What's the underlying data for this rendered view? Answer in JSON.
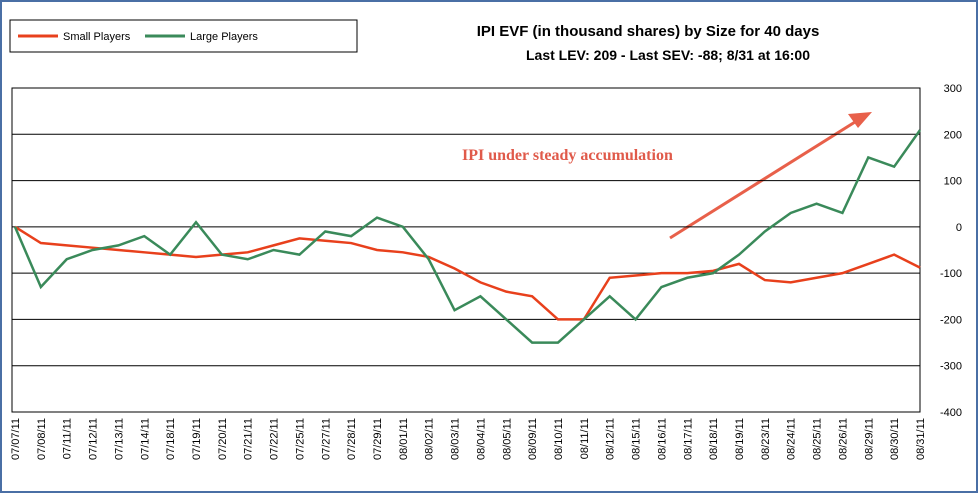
{
  "chart_data": {
    "type": "line",
    "title": "IPI EVF (in thousand shares) by Size for 40 days",
    "subtitle": "Last LEV: 209 - Last SEV: -88; 8/31 at 16:00",
    "annotation": "IPI under steady accumulation",
    "categories": [
      "07/07/11",
      "07/08/11",
      "07/11/11",
      "07/12/11",
      "07/13/11",
      "07/14/11",
      "07/18/11",
      "07/19/11",
      "07/20/11",
      "07/21/11",
      "07/22/11",
      "07/25/11",
      "07/27/11",
      "07/28/11",
      "07/29/11",
      "08/01/11",
      "08/02/11",
      "08/03/11",
      "08/04/11",
      "08/05/11",
      "08/09/11",
      "08/10/11",
      "08/11/11",
      "08/12/11",
      "08/15/11",
      "08/16/11",
      "08/17/11",
      "08/18/11",
      "08/19/11",
      "08/23/11",
      "08/24/11",
      "08/25/11",
      "08/26/11",
      "08/29/11",
      "08/30/11",
      "08/31/11"
    ],
    "series": [
      {
        "name": "Small Players",
        "color": "#e8401c",
        "values": [
          0,
          -35,
          -40,
          -45,
          -50,
          -55,
          -60,
          -65,
          -60,
          -55,
          -40,
          -25,
          -30,
          -35,
          -50,
          -55,
          -65,
          -90,
          -120,
          -140,
          -150,
          -200,
          -200,
          -110,
          -105,
          -100,
          -100,
          -95,
          -80,
          -115,
          -120,
          -110,
          -100,
          -80,
          -60,
          -88
        ]
      },
      {
        "name": "Large Players",
        "color": "#3a8a5a",
        "values": [
          0,
          -130,
          -70,
          -50,
          -40,
          -20,
          -60,
          10,
          -60,
          -70,
          -50,
          -60,
          -10,
          -20,
          20,
          0,
          -70,
          -180,
          -150,
          -200,
          -250,
          -250,
          -200,
          -150,
          -200,
          -130,
          -110,
          -100,
          -60,
          -10,
          30,
          50,
          30,
          150,
          130,
          209
        ]
      }
    ],
    "ylim": [
      -400,
      300
    ],
    "yticks": [
      -400,
      -300,
      -200,
      -100,
      0,
      100,
      200,
      300
    ],
    "grid": true
  }
}
